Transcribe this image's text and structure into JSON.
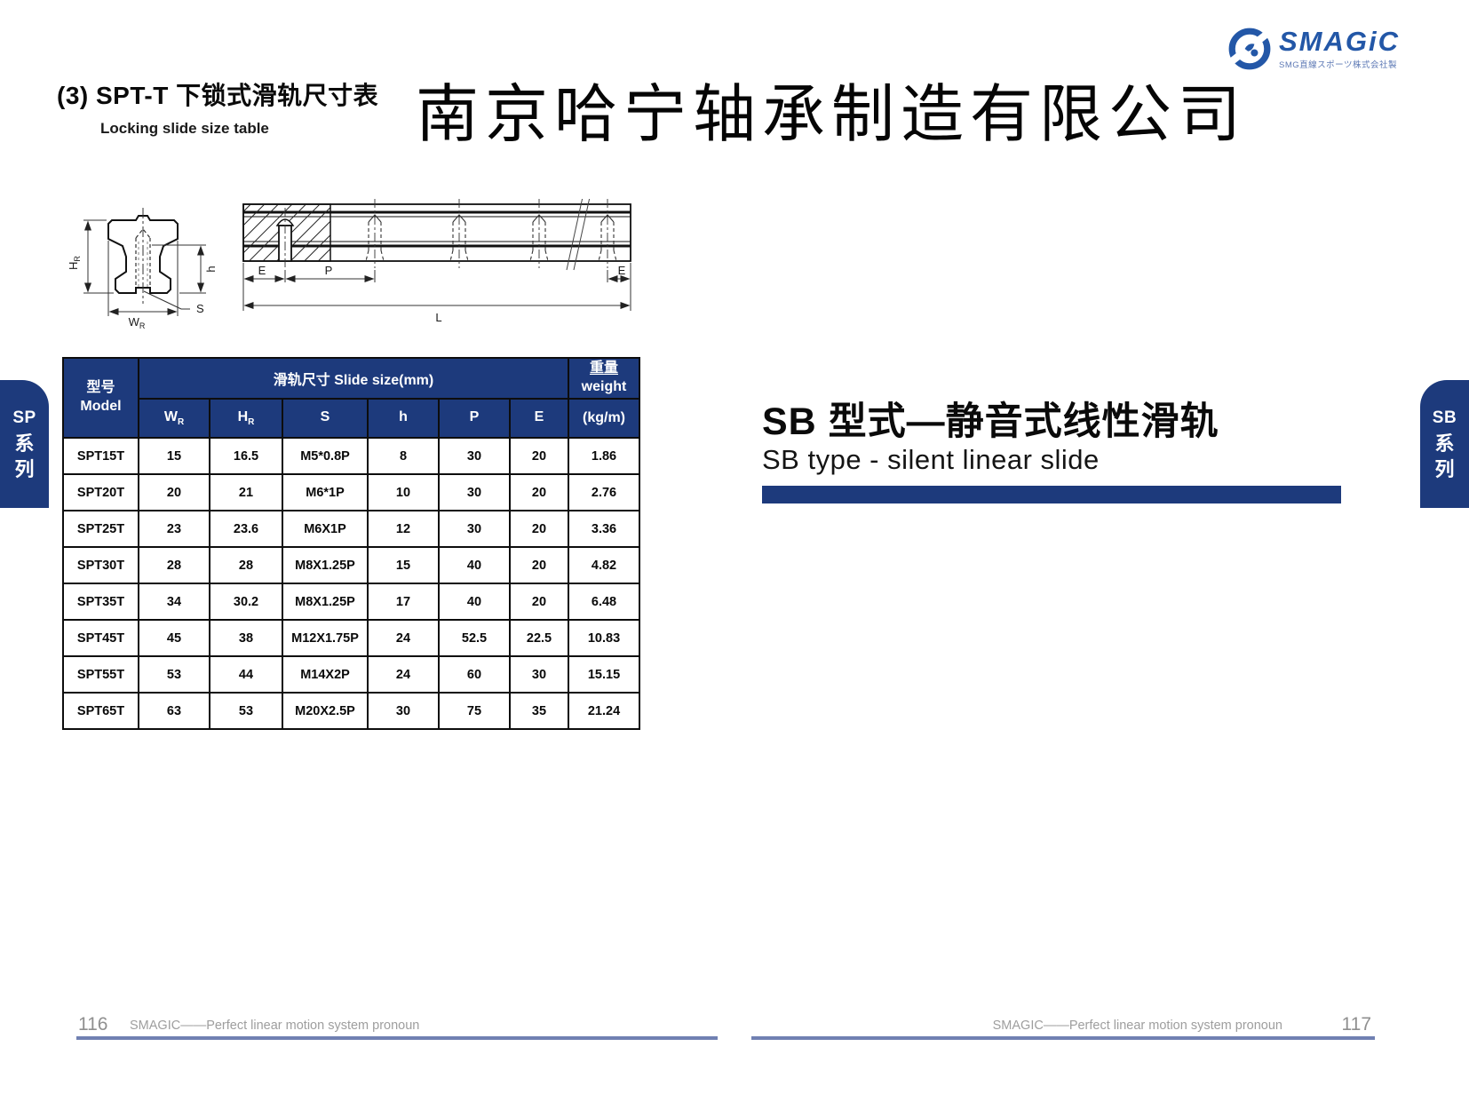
{
  "header": {
    "section_title": "(3) SPT-T 下锁式滑轨尺寸表",
    "section_subtitle": "Locking slide size table",
    "company_name": "南京哈宁轴承制造有限公司"
  },
  "logo": {
    "brand": "SMAGiC",
    "tagline": "SMG直線スポーツ株式会社製"
  },
  "diagram": {
    "cross_section": {
      "hr_main": "H",
      "hr_sub": "R",
      "h": "h",
      "wr_main": "W",
      "wr_sub": "R",
      "s": "S"
    },
    "side_view": {
      "e_left": "E",
      "p": "P",
      "e_right": "E",
      "l": "L"
    }
  },
  "tabs": {
    "left": {
      "line1": "SP",
      "line2": "系",
      "line3": "列"
    },
    "right": {
      "line1": "SB",
      "line2": "系",
      "line3": "列"
    }
  },
  "table": {
    "header": {
      "model_zh": "型号",
      "model_en": "Model",
      "slide_size": "滑轨尺寸 Slide size(mm)",
      "weight_zh": "重量",
      "weight_en": "weight",
      "weight_unit": "(kg/m)",
      "sub_columns": [
        {
          "main": "W",
          "sub": "R"
        },
        {
          "main": "H",
          "sub": "R"
        },
        {
          "main": "S",
          "sub": ""
        },
        {
          "main": "h",
          "sub": ""
        },
        {
          "main": "P",
          "sub": ""
        },
        {
          "main": "E",
          "sub": ""
        }
      ]
    },
    "rows": [
      {
        "model": "SPT15T",
        "values": [
          "15",
          "16.5",
          "M5*0.8P",
          "8",
          "30",
          "20"
        ],
        "weight": "1.86"
      },
      {
        "model": "SPT20T",
        "values": [
          "20",
          "21",
          "M6*1P",
          "10",
          "30",
          "20"
        ],
        "weight": "2.76"
      },
      {
        "model": "SPT25T",
        "values": [
          "23",
          "23.6",
          "M6X1P",
          "12",
          "30",
          "20"
        ],
        "weight": "3.36"
      },
      {
        "model": "SPT30T",
        "values": [
          "28",
          "28",
          "M8X1.25P",
          "15",
          "40",
          "20"
        ],
        "weight": "4.82"
      },
      {
        "model": "SPT35T",
        "values": [
          "34",
          "30.2",
          "M8X1.25P",
          "17",
          "40",
          "20"
        ],
        "weight": "6.48"
      },
      {
        "model": "SPT45T",
        "values": [
          "45",
          "38",
          "M12X1.75P",
          "24",
          "52.5",
          "22.5"
        ],
        "weight": "10.83"
      },
      {
        "model": "SPT55T",
        "values": [
          "53",
          "44",
          "M14X2P",
          "24",
          "60",
          "30"
        ],
        "weight": "15.15"
      },
      {
        "model": "SPT65T",
        "values": [
          "63",
          "53",
          "M20X2.5P",
          "30",
          "75",
          "35"
        ],
        "weight": "21.24"
      }
    ]
  },
  "sb_section": {
    "title": "SB 型式—静音式线性滑轨",
    "subtitle": "SB type - silent linear slide"
  },
  "footer": {
    "left_page": "116",
    "left_text": "SMAGIC——Perfect linear motion system pronoun",
    "right_text": "SMAGIC——Perfect linear motion system pronoun",
    "right_page": "117"
  },
  "colors": {
    "navy": "#1d3a7c",
    "logo_blue": "#2357a7",
    "footer_line": "#7080b2"
  }
}
